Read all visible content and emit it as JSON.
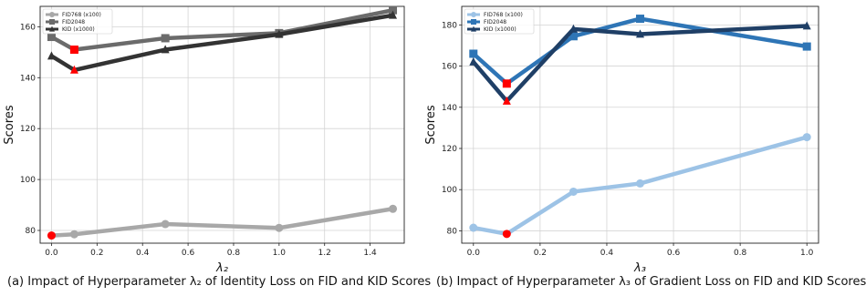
{
  "chart_data": [
    {
      "type": "line",
      "panel": "a",
      "caption": "(a) Impact of Hyperparameter λ₂ of Identity Loss on FID and KID Scores",
      "xlabel": "λ₂",
      "ylabel": "Scores",
      "xlim": [
        -0.05,
        1.55
      ],
      "ylim": [
        75,
        168
      ],
      "x_ticks": [
        0.0,
        0.2,
        0.4,
        0.6,
        0.8,
        1.0,
        1.2,
        1.4
      ],
      "x_tick_labels": [
        "0.0",
        "0.2",
        "0.4",
        "0.6",
        "0.8",
        "1.0",
        "1.2",
        "1.4"
      ],
      "y_ticks": [
        80,
        100,
        120,
        140,
        160
      ],
      "y_tick_labels": [
        "80",
        "100",
        "120",
        "140",
        "160"
      ],
      "grid": true,
      "legend_position": "top-left",
      "x": [
        0.0,
        0.1,
        0.5,
        1.0,
        1.5
      ],
      "series": [
        {
          "name": "FID768 (x100)",
          "values": [
            78.0,
            78.5,
            82.5,
            81.0,
            88.5
          ],
          "color": "#a8a8a8",
          "marker": "circle"
        },
        {
          "name": "FID2048",
          "values": [
            156.0,
            151.0,
            155.5,
            157.5,
            166.5
          ],
          "color": "#6b6b6b",
          "marker": "square"
        },
        {
          "name": "KID (x1000)",
          "values": [
            148.5,
            143.0,
            151.0,
            157.0,
            164.5
          ],
          "color": "#333333",
          "marker": "triangle"
        }
      ],
      "highlights": [
        {
          "series": 0,
          "index": 0,
          "color": "#ff0000"
        },
        {
          "series": 1,
          "index": 1,
          "color": "#ff0000"
        },
        {
          "series": 2,
          "index": 1,
          "color": "#ff0000"
        }
      ]
    },
    {
      "type": "line",
      "panel": "b",
      "caption": "(b) Impact of Hyperparameter λ₃ of Gradient Loss on FID and KID Scores",
      "xlabel": "λ₃",
      "ylabel": "Scores",
      "xlim": [
        -0.035,
        1.035
      ],
      "ylim": [
        74,
        189
      ],
      "x_ticks": [
        0.0,
        0.2,
        0.4,
        0.6,
        0.8,
        1.0
      ],
      "x_tick_labels": [
        "0.0",
        "0.2",
        "0.4",
        "0.6",
        "0.8",
        "1.0"
      ],
      "y_ticks": [
        80,
        100,
        120,
        140,
        160,
        180
      ],
      "y_tick_labels": [
        "80",
        "100",
        "120",
        "140",
        "160",
        "180"
      ],
      "grid": true,
      "legend_position": "top-left",
      "x": [
        0.0,
        0.1,
        0.3,
        0.5,
        1.0
      ],
      "series": [
        {
          "name": "FID768 (x100)",
          "values": [
            81.5,
            78.5,
            99.0,
            103.0,
            125.5
          ],
          "color": "#9dc3e6",
          "marker": "circle"
        },
        {
          "name": "FID2048",
          "values": [
            166.0,
            151.5,
            174.5,
            183.0,
            169.5
          ],
          "color": "#2e75b6",
          "marker": "square"
        },
        {
          "name": "KID (x1000)",
          "values": [
            162.0,
            143.0,
            178.0,
            175.5,
            179.5
          ],
          "color": "#1f3f66",
          "marker": "triangle"
        }
      ],
      "highlights": [
        {
          "series": 0,
          "index": 1,
          "color": "#ff0000"
        },
        {
          "series": 1,
          "index": 1,
          "color": "#ff0000"
        },
        {
          "series": 2,
          "index": 1,
          "color": "#ff0000"
        }
      ]
    }
  ]
}
